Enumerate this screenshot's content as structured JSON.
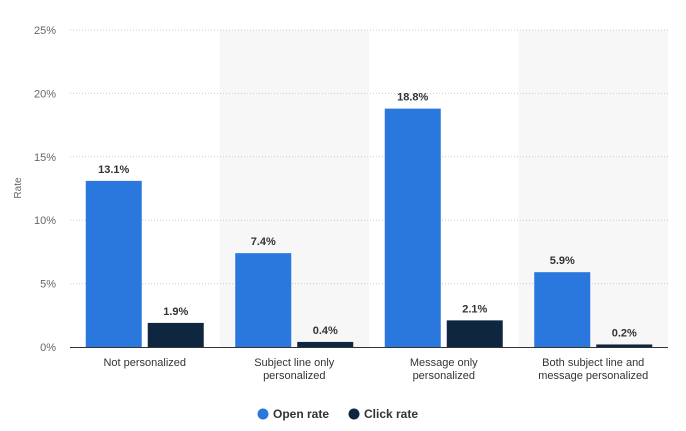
{
  "chart_data": {
    "type": "bar",
    "categories": [
      [
        "Not personalized"
      ],
      [
        "Subject line only",
        "personalized"
      ],
      [
        "Message only",
        "personalized"
      ],
      [
        "Both subject line and",
        "message personalized"
      ]
    ],
    "series": [
      {
        "name": "Open rate",
        "values": [
          13.1,
          7.4,
          18.8,
          5.9
        ],
        "labels": [
          "13.1%",
          "7.4%",
          "18.8%",
          "5.9%"
        ]
      },
      {
        "name": "Click rate",
        "values": [
          1.9,
          0.4,
          2.1,
          0.2
        ],
        "labels": [
          "1.9%",
          "0.4%",
          "2.1%",
          "0.2%"
        ]
      }
    ],
    "ylabel": "Rate",
    "xlabel": "",
    "ylim": [
      0,
      25
    ],
    "yticks": [
      0,
      5,
      10,
      15,
      20,
      25
    ],
    "ytick_labels": [
      "0%",
      "5%",
      "10%",
      "15%",
      "20%",
      "25%"
    ],
    "grid": true,
    "legend_position": "bottom-center",
    "colors": {
      "open_rate": "#2a77dd",
      "click_rate": "#0e2640",
      "band": "#f7f7f7",
      "grid": "#cccccc",
      "axis": "#333333"
    }
  }
}
